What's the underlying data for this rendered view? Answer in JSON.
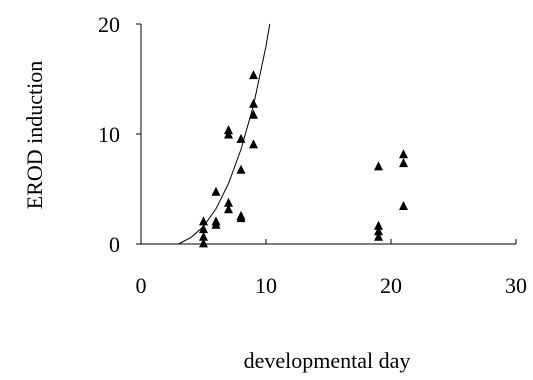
{
  "chart_data": {
    "type": "scatter",
    "xlabel": "developmental day",
    "ylabel": "EROD induction",
    "xlim": [
      0,
      30
    ],
    "ylim": [
      0,
      20
    ],
    "x_ticks": [
      0,
      10,
      20,
      30
    ],
    "y_ticks": [
      0,
      10,
      20
    ],
    "grid": false,
    "marker": "triangle",
    "series": [
      {
        "points": [
          {
            "x": 5,
            "y": 0.1
          },
          {
            "x": 5,
            "y": 0.7
          },
          {
            "x": 5,
            "y": 1.4
          },
          {
            "x": 5,
            "y": 2.1
          },
          {
            "x": 6,
            "y": 1.8
          },
          {
            "x": 6,
            "y": 2.1
          },
          {
            "x": 6,
            "y": 4.8
          },
          {
            "x": 7,
            "y": 3.2
          },
          {
            "x": 7,
            "y": 3.8
          },
          {
            "x": 7,
            "y": 10.0
          },
          {
            "x": 7,
            "y": 10.4
          },
          {
            "x": 8,
            "y": 2.4
          },
          {
            "x": 8,
            "y": 2.6
          },
          {
            "x": 8,
            "y": 6.8
          },
          {
            "x": 8,
            "y": 9.6
          },
          {
            "x": 9,
            "y": 9.1
          },
          {
            "x": 9,
            "y": 11.8
          },
          {
            "x": 9,
            "y": 12.8
          },
          {
            "x": 9,
            "y": 15.4
          },
          {
            "x": 19,
            "y": 0.7
          },
          {
            "x": 19,
            "y": 1.2
          },
          {
            "x": 19,
            "y": 1.7
          },
          {
            "x": 19,
            "y": 7.1
          },
          {
            "x": 21,
            "y": 3.5
          },
          {
            "x": 21,
            "y": 7.4
          },
          {
            "x": 21,
            "y": 8.2
          }
        ]
      }
    ],
    "fit_curve": {
      "points": [
        {
          "x": 3.0,
          "y": 0.0
        },
        {
          "x": 4.0,
          "y": 0.6
        },
        {
          "x": 5.0,
          "y": 1.6
        },
        {
          "x": 6.0,
          "y": 3.2
        },
        {
          "x": 7.0,
          "y": 5.5
        },
        {
          "x": 8.0,
          "y": 8.6
        },
        {
          "x": 9.0,
          "y": 12.6
        },
        {
          "x": 10.0,
          "y": 18.0
        },
        {
          "x": 10.3,
          "y": 20.0
        }
      ]
    }
  }
}
